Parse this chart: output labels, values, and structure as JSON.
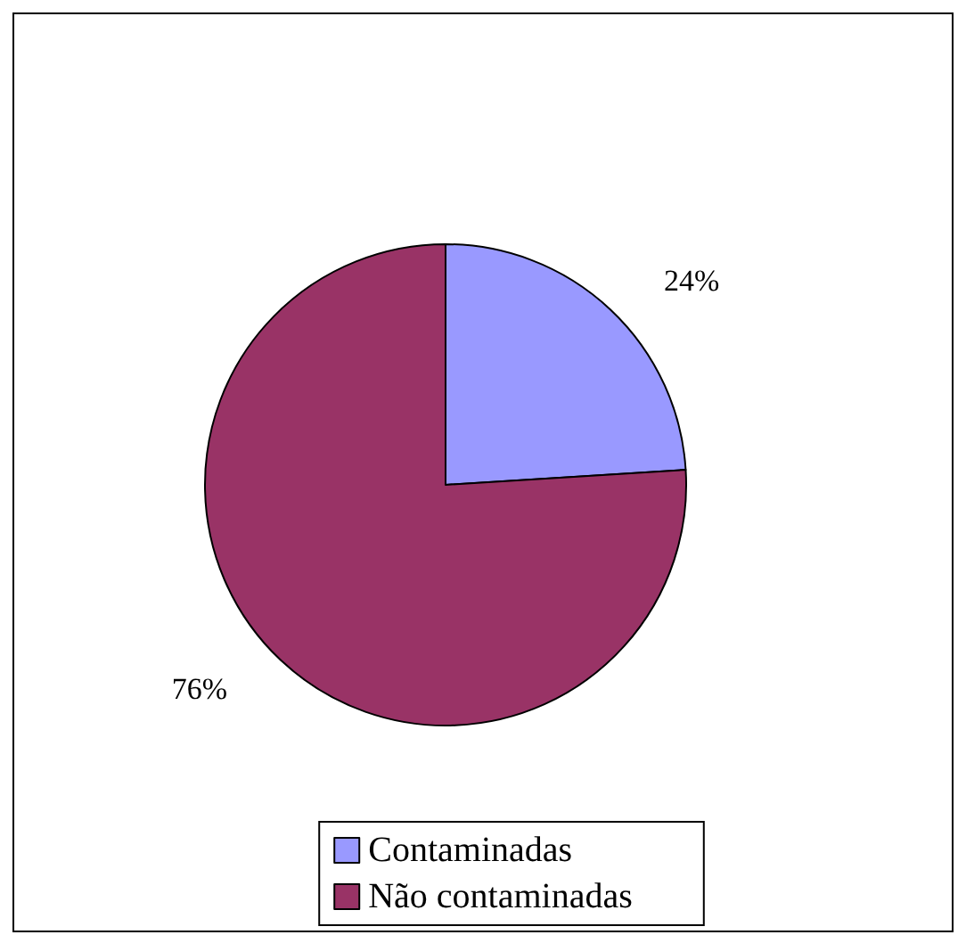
{
  "chart_data": {
    "type": "pie",
    "categories": [
      "Contaminadas",
      "Não contaminadas"
    ],
    "values": [
      24,
      76
    ],
    "colors": [
      "#9999ff",
      "#993366"
    ],
    "value_labels": [
      "24%",
      "76%"
    ],
    "legend": "bottom"
  }
}
